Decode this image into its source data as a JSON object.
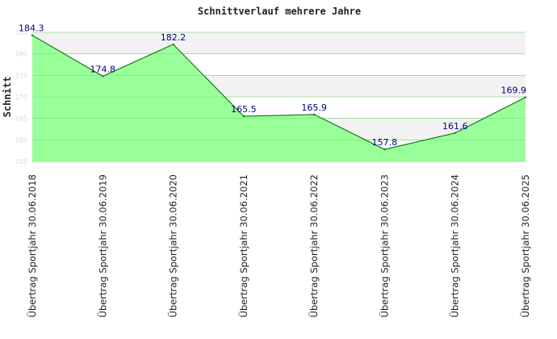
{
  "chart_data": {
    "type": "area",
    "title": "Schnittverlauf mehrere Jahre",
    "xlabel": "",
    "ylabel": "Schnitt",
    "categories": [
      "Übertrag Sportjahr 30.06.2018",
      "Übertrag Sportjahr 30.06.2019",
      "Übertrag Sportjahr 30.06.2020",
      "Übertrag Sportjahr 30.06.2021",
      "Übertrag Sportjahr 30.06.2022",
      "Übertrag Sportjahr 30.06.2023",
      "Übertrag Sportjahr 30.06.2024",
      "Übertrag Sportjahr 30.06.2025"
    ],
    "values": [
      184.3,
      174.8,
      182.2,
      165.5,
      165.9,
      157.8,
      161.6,
      169.9
    ],
    "data_labels": [
      "184.3",
      "174.8",
      "182.2",
      "165.5",
      "165.9",
      "157.8",
      "161.6",
      "169.9"
    ],
    "ylim": [
      155,
      185
    ],
    "yticks": [
      155,
      160,
      165,
      170,
      175,
      180,
      185
    ],
    "ytick_labels": [
      "155",
      "160",
      "165",
      "170",
      "175",
      "180",
      "185"
    ],
    "grid": true,
    "legend": "none",
    "colors": {
      "fill": "#99ff99",
      "line": "#1a7a1a",
      "band_alt": "#f2f2f2",
      "grid": "#dddddd",
      "data_label": "#000080"
    }
  }
}
